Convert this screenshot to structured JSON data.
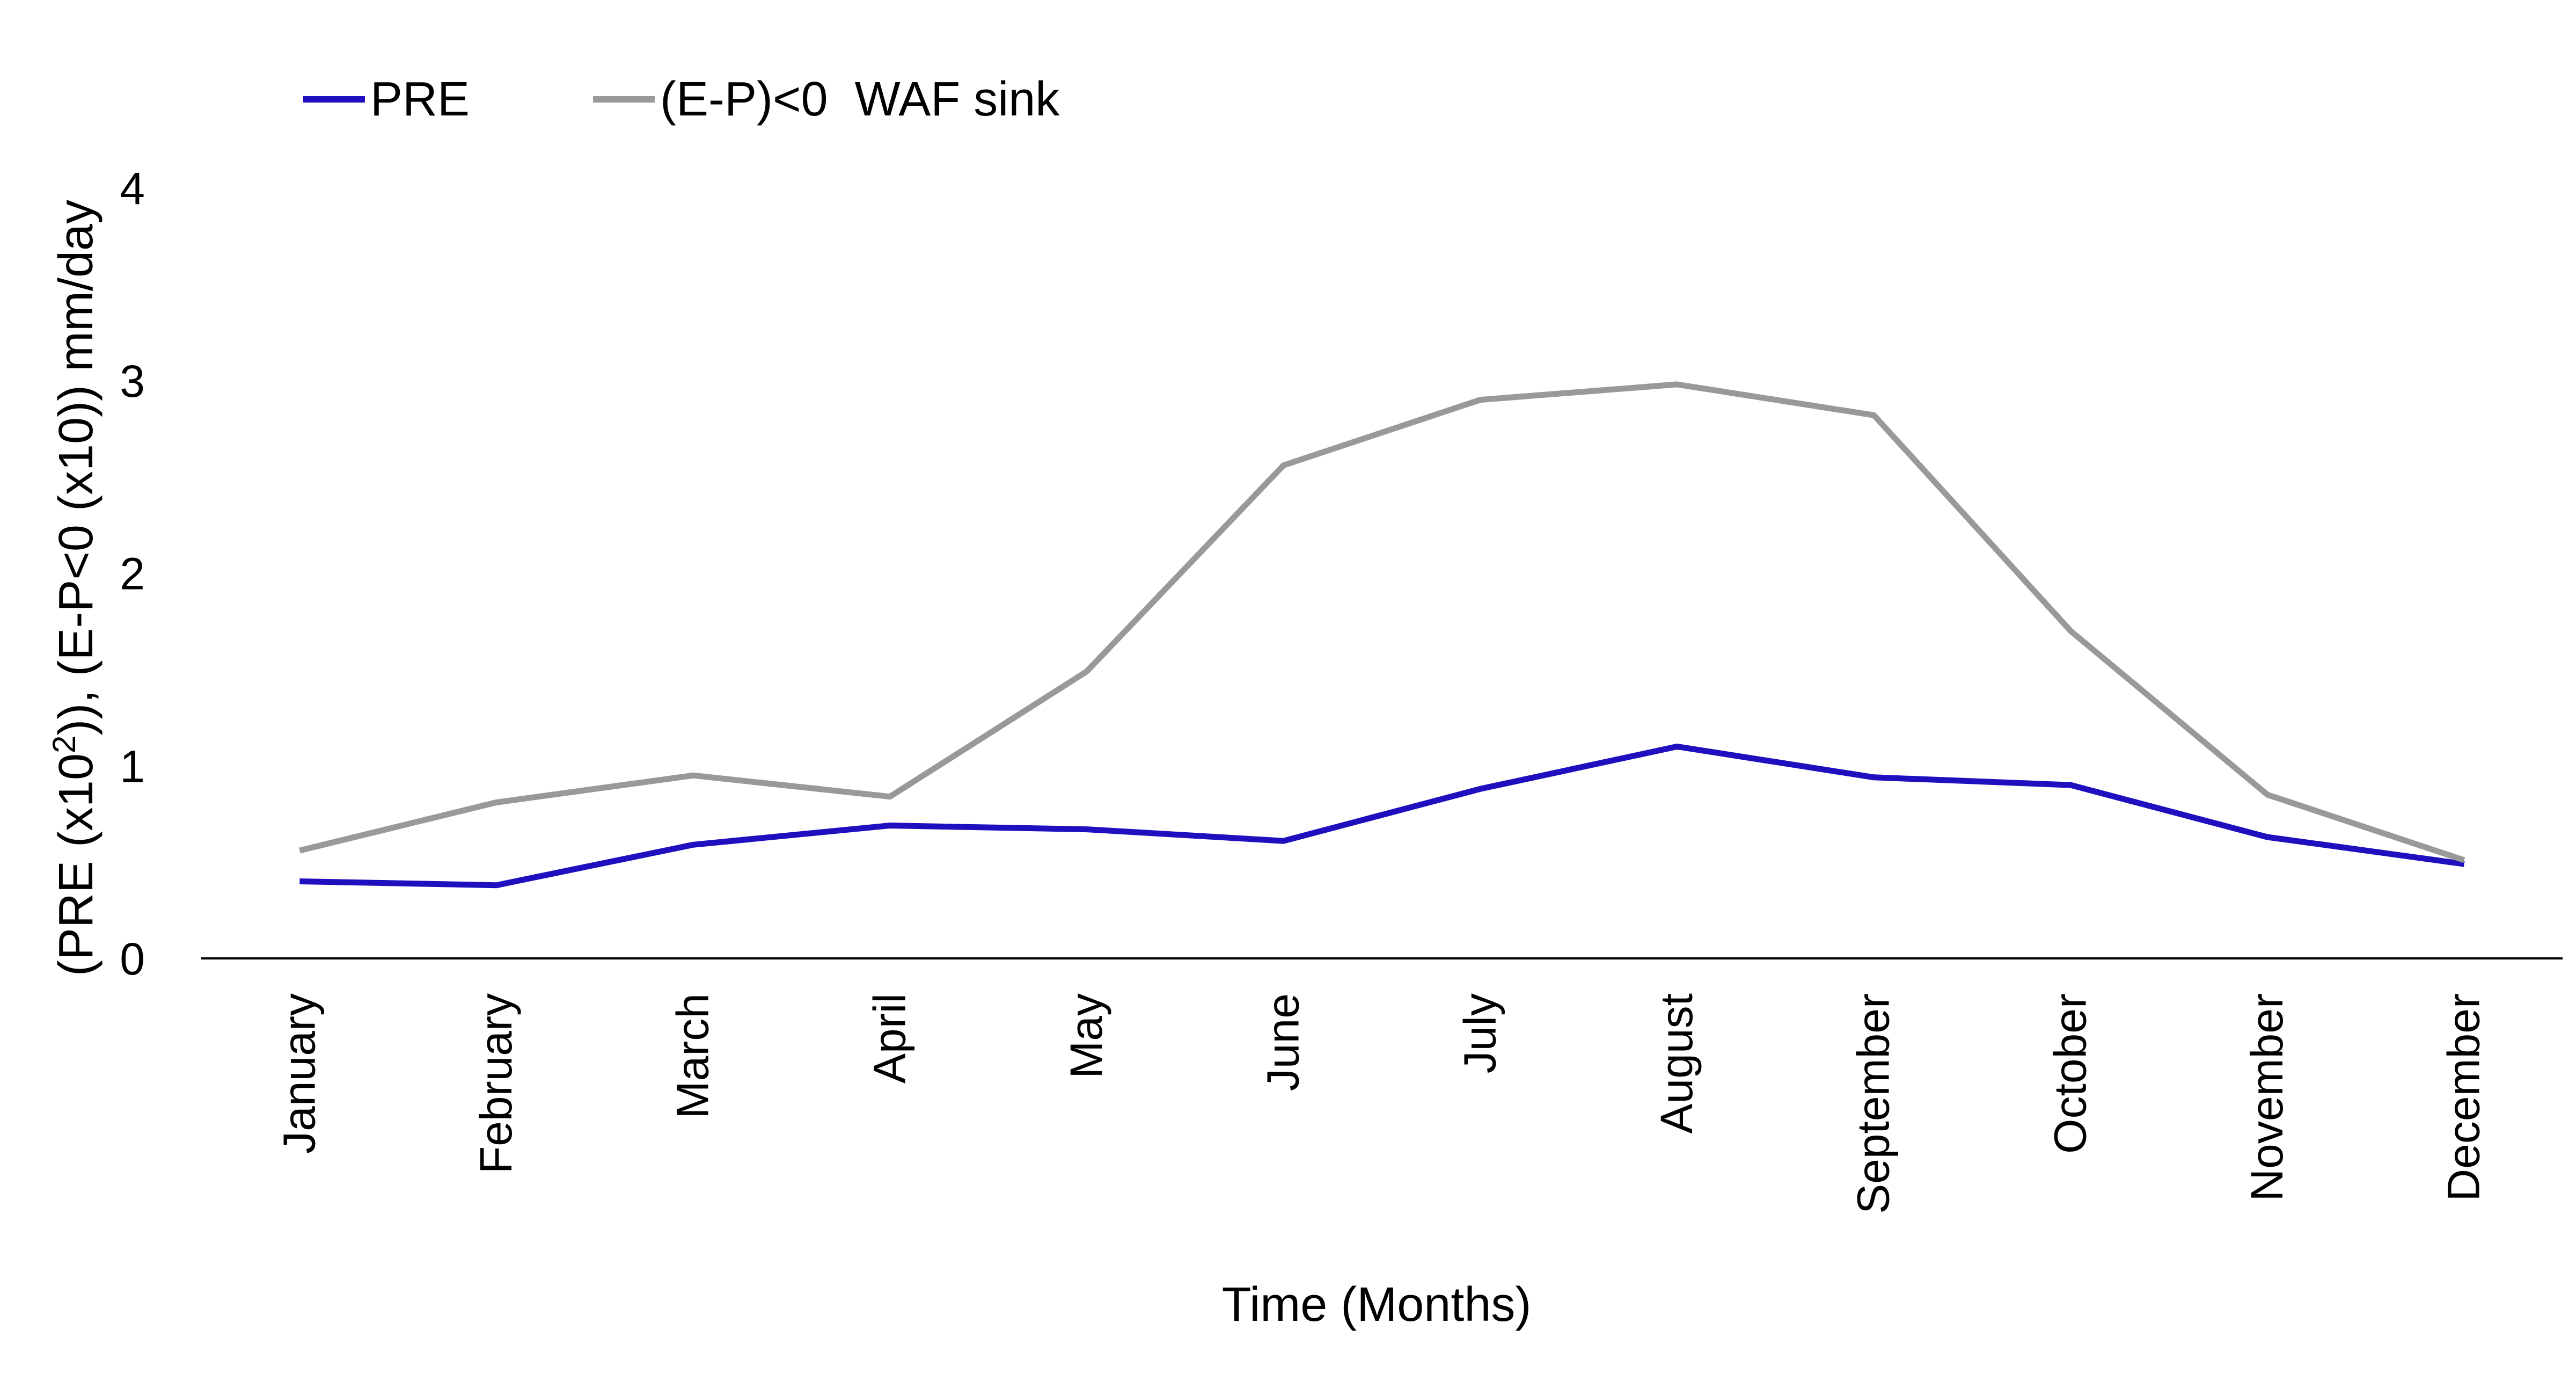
{
  "chart_data": {
    "type": "line",
    "title": "",
    "xlabel": "Time (Months)",
    "ylabel": {
      "prefix": "(PRE (x10",
      "superscript": "2",
      "suffix": ")), (E-P<0 (x10)) mm/day"
    },
    "categories": [
      "January",
      "February",
      "March",
      "April",
      "May",
      "June",
      "July",
      "August",
      "September",
      "October",
      "November",
      "December"
    ],
    "ylim": [
      0,
      4
    ],
    "yticks": [
      "0",
      "1",
      "2",
      "3",
      "4"
    ],
    "grid": false,
    "legend_position": "top-left",
    "series": [
      {
        "name": "PRE",
        "color": "#1f0fbf",
        "values": [
          0.4,
          0.38,
          0.59,
          0.69,
          0.67,
          0.61,
          0.88,
          1.1,
          0.94,
          0.9,
          0.63,
          0.49
        ]
      },
      {
        "name": "(E-P)<0  WAF sink",
        "color": "#999999",
        "values": [
          0.56,
          0.81,
          0.95,
          0.84,
          1.49,
          2.56,
          2.9,
          2.98,
          2.82,
          1.7,
          0.85,
          0.51
        ]
      }
    ]
  }
}
